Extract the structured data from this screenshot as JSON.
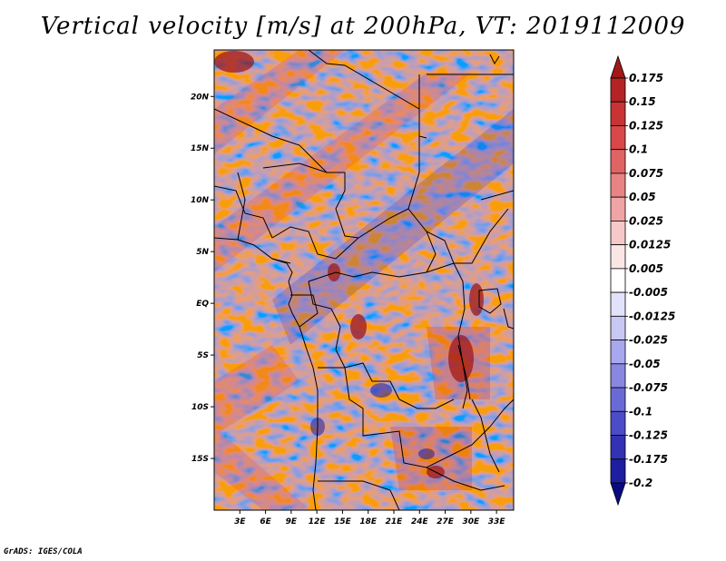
{
  "title": "Vertical velocity [m/s] at 200hPa, VT: 2019112009",
  "footer": "GrADS: IGES/COLA",
  "map": {
    "lat_ticks": [
      "20N",
      "15N",
      "10N",
      "5N",
      "EQ",
      "5S",
      "10S",
      "15S"
    ],
    "lat_values": [
      20,
      15,
      10,
      5,
      0,
      -5,
      -10,
      -15
    ],
    "lon_ticks": [
      "3E",
      "6E",
      "9E",
      "12E",
      "15E",
      "18E",
      "21E",
      "24E",
      "27E",
      "30E",
      "33E"
    ],
    "lon_values": [
      3,
      6,
      9,
      12,
      15,
      18,
      21,
      24,
      27,
      30,
      33
    ],
    "lat_range": [
      -20,
      24.5
    ],
    "lon_range": [
      0,
      35
    ]
  },
  "colorbar": {
    "labels": [
      "0.175",
      "0.15",
      "0.125",
      "0.1",
      "0.075",
      "0.05",
      "0.025",
      "0.0125",
      "0.005",
      "-0.005",
      "-0.0125",
      "-0.025",
      "-0.05",
      "-0.075",
      "-0.1",
      "-0.125",
      "-0.175",
      "-0.2"
    ],
    "colors": [
      "#a01818",
      "#b42424",
      "#c83434",
      "#d84848",
      "#e06464",
      "#e88484",
      "#f0a4a4",
      "#f6c8c8",
      "#fbe6e6",
      "#ffffff",
      "#e2e2fa",
      "#c8c8f4",
      "#a8a8ee",
      "#8888e2",
      "#6a6ad6",
      "#4c4cc8",
      "#3232b4",
      "#1e1ea0",
      "#0a0a80"
    ]
  }
}
